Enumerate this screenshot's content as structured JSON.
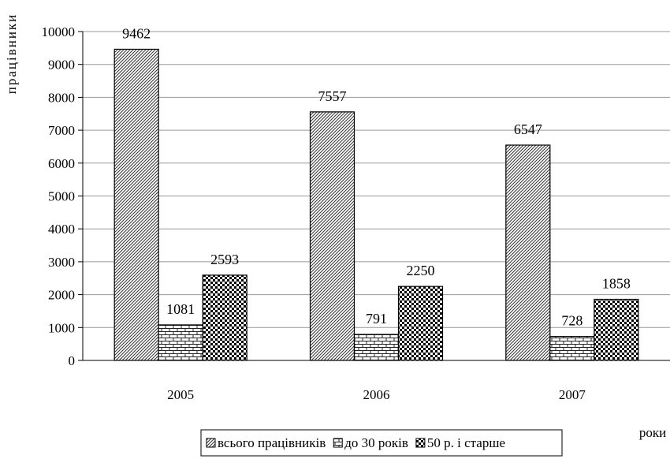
{
  "chart_data": {
    "type": "bar",
    "title": "",
    "xlabel": "роки",
    "ylabel": "працівники",
    "categories": [
      "2005",
      "2006",
      "2007"
    ],
    "series": [
      {
        "name": "всього працівників",
        "values": [
          9462,
          7557,
          6547
        ],
        "pattern": "diagonal-hatch"
      },
      {
        "name": "до 30 років",
        "values": [
          1081,
          791,
          728
        ],
        "pattern": "brick"
      },
      {
        "name": "50 р. і старше",
        "values": [
          2593,
          2250,
          1858
        ],
        "pattern": "checker"
      }
    ],
    "ylim": [
      0,
      10000
    ],
    "yticks": [
      "0",
      "1000",
      "2000",
      "3000",
      "4000",
      "5000",
      "6000",
      "7000",
      "8000",
      "9000",
      "10000"
    ],
    "grid": true,
    "legend_position": "bottom"
  }
}
